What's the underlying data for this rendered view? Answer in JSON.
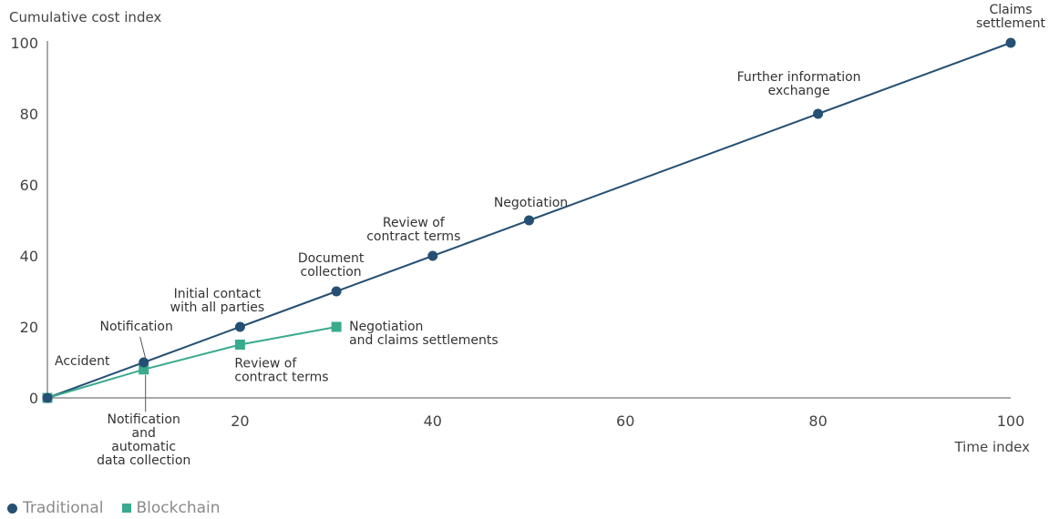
{
  "chart_data": {
    "type": "line",
    "ylabel": "Cumulative cost index",
    "xlabel": "Time index",
    "xlim": [
      0,
      100
    ],
    "ylim": [
      0,
      100
    ],
    "x_ticks": [
      20,
      40,
      60,
      80,
      100
    ],
    "y_ticks": [
      0,
      20,
      40,
      60,
      80,
      100
    ],
    "grid": false,
    "legend_position": "bottom-left",
    "series": [
      {
        "name": "Traditional",
        "marker": "circle",
        "color": "#265073",
        "points": [
          {
            "x": 0,
            "y": 0,
            "label": "Accident"
          },
          {
            "x": 10,
            "y": 10,
            "label": "Notification"
          },
          {
            "x": 20,
            "y": 20,
            "label": "Initial contact\nwith all parties"
          },
          {
            "x": 30,
            "y": 30,
            "label": "Document\ncollection"
          },
          {
            "x": 40,
            "y": 40,
            "label": "Review of\ncontract terms"
          },
          {
            "x": 50,
            "y": 50,
            "label": "Negotiation"
          },
          {
            "x": 80,
            "y": 80,
            "label": "Further information\nexchange"
          },
          {
            "x": 100,
            "y": 100,
            "label": "Claims\nsettlement"
          }
        ]
      },
      {
        "name": "Blockchain",
        "marker": "square",
        "color": "#3AAA8E",
        "points": [
          {
            "x": 0,
            "y": 0,
            "label": ""
          },
          {
            "x": 10,
            "y": 8,
            "label": "Notification\nand\nautomatic\ndata collection"
          },
          {
            "x": 20,
            "y": 15,
            "label": "Review of\ncontract terms"
          },
          {
            "x": 30,
            "y": 20,
            "label": "Negotiation\nand claims settlements"
          }
        ]
      }
    ]
  },
  "legend": {
    "traditional": "Traditional",
    "blockchain": "Blockchain",
    "traditional_color": "#265073",
    "blockchain_color": "#3AAA8E"
  }
}
